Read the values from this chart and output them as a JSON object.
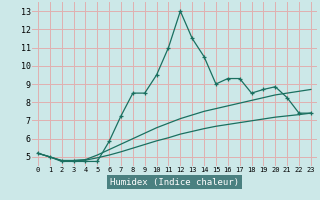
{
  "xlabel": "Humidex (Indice chaleur)",
  "bg_color": "#cce8e8",
  "plot_bg_color": "#cce8e8",
  "grid_color": "#e0b0b0",
  "line_color": "#1a7060",
  "xlabel_bg": "#4a8080",
  "xlabel_fg": "#ffffff",
  "xlim": [
    -0.5,
    23.5
  ],
  "ylim": [
    4.5,
    13.5
  ],
  "yticks": [
    5,
    6,
    7,
    8,
    9,
    10,
    11,
    12,
    13
  ],
  "xticks": [
    0,
    1,
    2,
    3,
    4,
    5,
    6,
    7,
    8,
    9,
    10,
    11,
    12,
    13,
    14,
    15,
    16,
    17,
    18,
    19,
    20,
    21,
    22,
    23
  ],
  "humidex": [
    5.2,
    5.0,
    4.75,
    4.75,
    4.75,
    4.75,
    5.85,
    7.25,
    8.5,
    8.5,
    9.5,
    11.0,
    13.0,
    11.5,
    10.5,
    9.0,
    9.3,
    9.3,
    8.5,
    8.7,
    8.85,
    8.25,
    7.4,
    7.4
  ],
  "trend1": [
    5.2,
    5.0,
    4.8,
    4.8,
    4.85,
    5.1,
    5.4,
    5.7,
    6.0,
    6.3,
    6.6,
    6.85,
    7.1,
    7.3,
    7.5,
    7.65,
    7.8,
    7.95,
    8.1,
    8.25,
    8.4,
    8.5,
    8.6,
    8.7
  ],
  "trend2": [
    5.2,
    5.0,
    4.8,
    4.8,
    4.82,
    4.95,
    5.1,
    5.28,
    5.48,
    5.68,
    5.88,
    6.05,
    6.25,
    6.4,
    6.55,
    6.68,
    6.78,
    6.88,
    6.98,
    7.08,
    7.18,
    7.25,
    7.32,
    7.4
  ]
}
